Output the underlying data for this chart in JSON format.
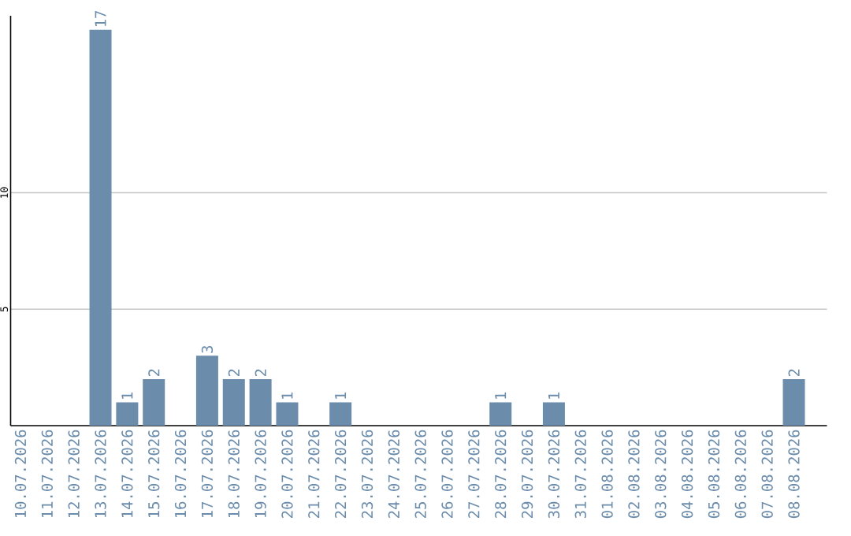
{
  "chart_data": {
    "type": "bar",
    "categories": [
      "10.07.2026",
      "11.07.2026",
      "12.07.2026",
      "13.07.2026",
      "14.07.2026",
      "15.07.2026",
      "16.07.2026",
      "17.07.2026",
      "18.07.2026",
      "19.07.2026",
      "20.07.2026",
      "21.07.2026",
      "22.07.2026",
      "23.07.2026",
      "24.07.2026",
      "25.07.2026",
      "26.07.2026",
      "27.07.2026",
      "28.07.2026",
      "29.07.2026",
      "30.07.2026",
      "31.07.2026",
      "01.08.2026",
      "02.08.2026",
      "03.08.2026",
      "04.08.2026",
      "05.08.2026",
      "06.08.2026",
      "07.08.2026",
      "08.08.2026"
    ],
    "values": [
      0,
      0,
      0,
      17,
      1,
      2,
      0,
      3,
      2,
      2,
      1,
      0,
      1,
      0,
      0,
      0,
      0,
      0,
      1,
      0,
      1,
      0,
      0,
      0,
      0,
      0,
      0,
      0,
      0,
      2
    ],
    "value_labels": [
      null,
      null,
      null,
      "17",
      "1",
      "2",
      null,
      "3",
      "2",
      "2",
      "1",
      null,
      "1",
      null,
      null,
      null,
      null,
      null,
      "1",
      null,
      "1",
      null,
      null,
      null,
      null,
      null,
      null,
      null,
      null,
      "2"
    ],
    "color": "#6b8cab",
    "ylim": [
      0,
      17.6
    ],
    "yticks": [
      5,
      10
    ],
    "grid": "y"
  }
}
